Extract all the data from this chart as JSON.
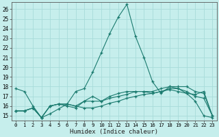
{
  "xlabel": "Humidex (Indice chaleur)",
  "xlim": [
    -0.5,
    23.5
  ],
  "ylim": [
    14.5,
    26.7
  ],
  "yticks": [
    15,
    16,
    17,
    18,
    19,
    20,
    21,
    22,
    23,
    24,
    25,
    26
  ],
  "xticks": [
    0,
    1,
    2,
    3,
    4,
    5,
    6,
    7,
    8,
    9,
    10,
    11,
    12,
    13,
    14,
    15,
    16,
    17,
    18,
    19,
    20,
    21,
    22,
    23
  ],
  "bg_color": "#c6eeec",
  "grid_color": "#a8dbd9",
  "line_color": "#1a7a6e",
  "line1_x": [
    0,
    1,
    2,
    3,
    4,
    5,
    6,
    7,
    8,
    9,
    10,
    11,
    12,
    13,
    14,
    15,
    16,
    17,
    18,
    19,
    20,
    21,
    22,
    23
  ],
  "line1_y": [
    17.8,
    17.5,
    16.0,
    14.8,
    15.2,
    15.7,
    16.2,
    17.5,
    17.8,
    19.5,
    21.5,
    23.5,
    25.2,
    26.5,
    23.2,
    21.0,
    18.5,
    17.3,
    18.0,
    17.8,
    17.3,
    16.5,
    15.0,
    14.8
  ],
  "line2_x": [
    0,
    1,
    2,
    3,
    4,
    5,
    6,
    7,
    8,
    9,
    10,
    11,
    12,
    13,
    14,
    15,
    16,
    17,
    18,
    19,
    20,
    21,
    22,
    23
  ],
  "line2_y": [
    15.5,
    15.5,
    15.8,
    14.8,
    16.0,
    16.2,
    16.2,
    16.0,
    15.8,
    15.8,
    16.0,
    16.3,
    16.5,
    16.8,
    17.0,
    17.2,
    17.3,
    17.5,
    17.7,
    17.5,
    17.3,
    17.2,
    17.5,
    15.0
  ],
  "line3_x": [
    0,
    1,
    2,
    3,
    4,
    5,
    6,
    7,
    8,
    9,
    10,
    11,
    12,
    13,
    14,
    15,
    16,
    17,
    18,
    19,
    20,
    21,
    22,
    23
  ],
  "line3_y": [
    15.5,
    15.5,
    15.8,
    14.8,
    16.0,
    16.2,
    16.2,
    16.0,
    16.5,
    16.5,
    16.5,
    16.8,
    17.0,
    17.2,
    17.5,
    17.5,
    17.5,
    17.8,
    18.0,
    18.0,
    18.0,
    17.5,
    17.3,
    15.0
  ],
  "line4_x": [
    0,
    1,
    2,
    3,
    4,
    5,
    6,
    7,
    8,
    9,
    10,
    11,
    12,
    13,
    14,
    15,
    16,
    17,
    18,
    19,
    20,
    21,
    22,
    23
  ],
  "line4_y": [
    15.5,
    15.5,
    15.8,
    14.8,
    16.0,
    16.2,
    16.0,
    15.8,
    16.5,
    17.0,
    16.5,
    17.0,
    17.3,
    17.5,
    17.5,
    17.5,
    17.3,
    17.5,
    17.8,
    17.8,
    17.5,
    17.0,
    16.8,
    15.0
  ]
}
